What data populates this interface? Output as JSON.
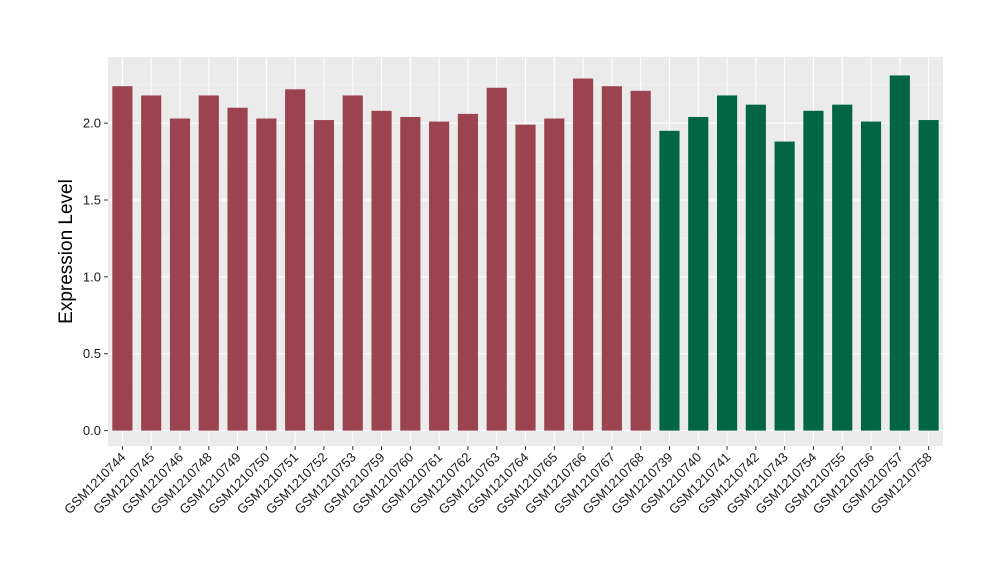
{
  "chart_data": {
    "type": "bar",
    "xlabel": "",
    "ylabel": "Expression Level",
    "ylim": [
      -0.1,
      2.43
    ],
    "yticks": [
      0.0,
      0.5,
      1.0,
      1.5,
      2.0
    ],
    "ytick_labels": [
      "0.0",
      "0.5",
      "1.0",
      "1.5",
      "2.0"
    ],
    "grid": true,
    "panel_background": "#ebebeb",
    "categories": [
      "GSM1210744",
      "GSM1210745",
      "GSM1210746",
      "GSM1210748",
      "GSM1210749",
      "GSM1210750",
      "GSM1210751",
      "GSM1210752",
      "GSM1210753",
      "GSM1210759",
      "GSM1210760",
      "GSM1210761",
      "GSM1210762",
      "GSM1210763",
      "GSM1210764",
      "GSM1210765",
      "GSM1210766",
      "GSM1210767",
      "GSM1210768",
      "GSM1210739",
      "GSM1210740",
      "GSM1210741",
      "GSM1210742",
      "GSM1210743",
      "GSM1210754",
      "GSM1210755",
      "GSM1210756",
      "GSM1210757",
      "GSM1210758"
    ],
    "values": [
      2.24,
      2.18,
      2.03,
      2.18,
      2.1,
      2.03,
      2.22,
      2.02,
      2.18,
      2.08,
      2.04,
      2.01,
      2.06,
      2.23,
      1.99,
      2.03,
      2.29,
      2.24,
      2.21,
      1.95,
      2.04,
      2.18,
      2.12,
      1.88,
      2.08,
      2.12,
      2.01,
      2.31,
      2.02
    ],
    "bar_colors": [
      "#9b4450",
      "#9b4450",
      "#9b4450",
      "#9b4450",
      "#9b4450",
      "#9b4450",
      "#9b4450",
      "#9b4450",
      "#9b4450",
      "#9b4450",
      "#9b4450",
      "#9b4450",
      "#9b4450",
      "#9b4450",
      "#9b4450",
      "#9b4450",
      "#9b4450",
      "#9b4450",
      "#9b4450",
      "#026644",
      "#026644",
      "#026644",
      "#026644",
      "#026644",
      "#026644",
      "#026644",
      "#026644",
      "#026644",
      "#026644"
    ]
  }
}
